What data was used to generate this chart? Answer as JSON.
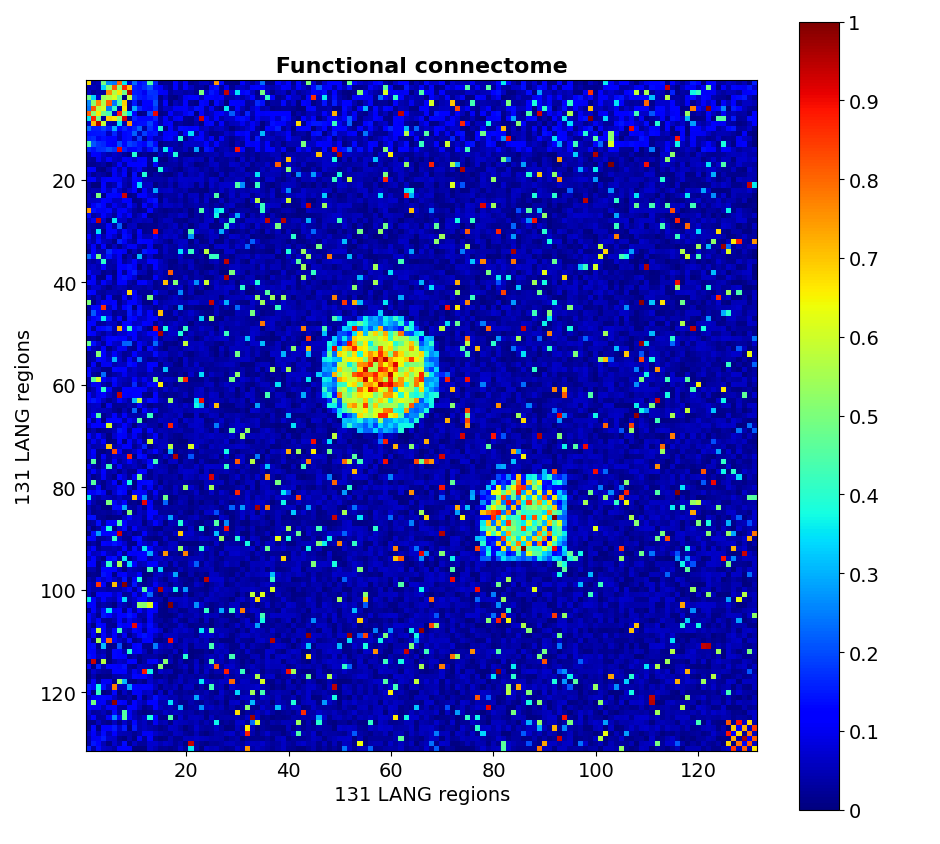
{
  "title": " Functional connectome ",
  "xlabel": " 131 LANG regions ",
  "ylabel": "131 LANG regions",
  "n_regions": 131,
  "vmin": 0,
  "vmax": 1,
  "colormap": "jet",
  "title_fontsize": 16,
  "label_fontsize": 14,
  "tick_fontsize": 14,
  "background_color": "white",
  "figsize": [
    9.4,
    8.45
  ],
  "dpi": 100
}
